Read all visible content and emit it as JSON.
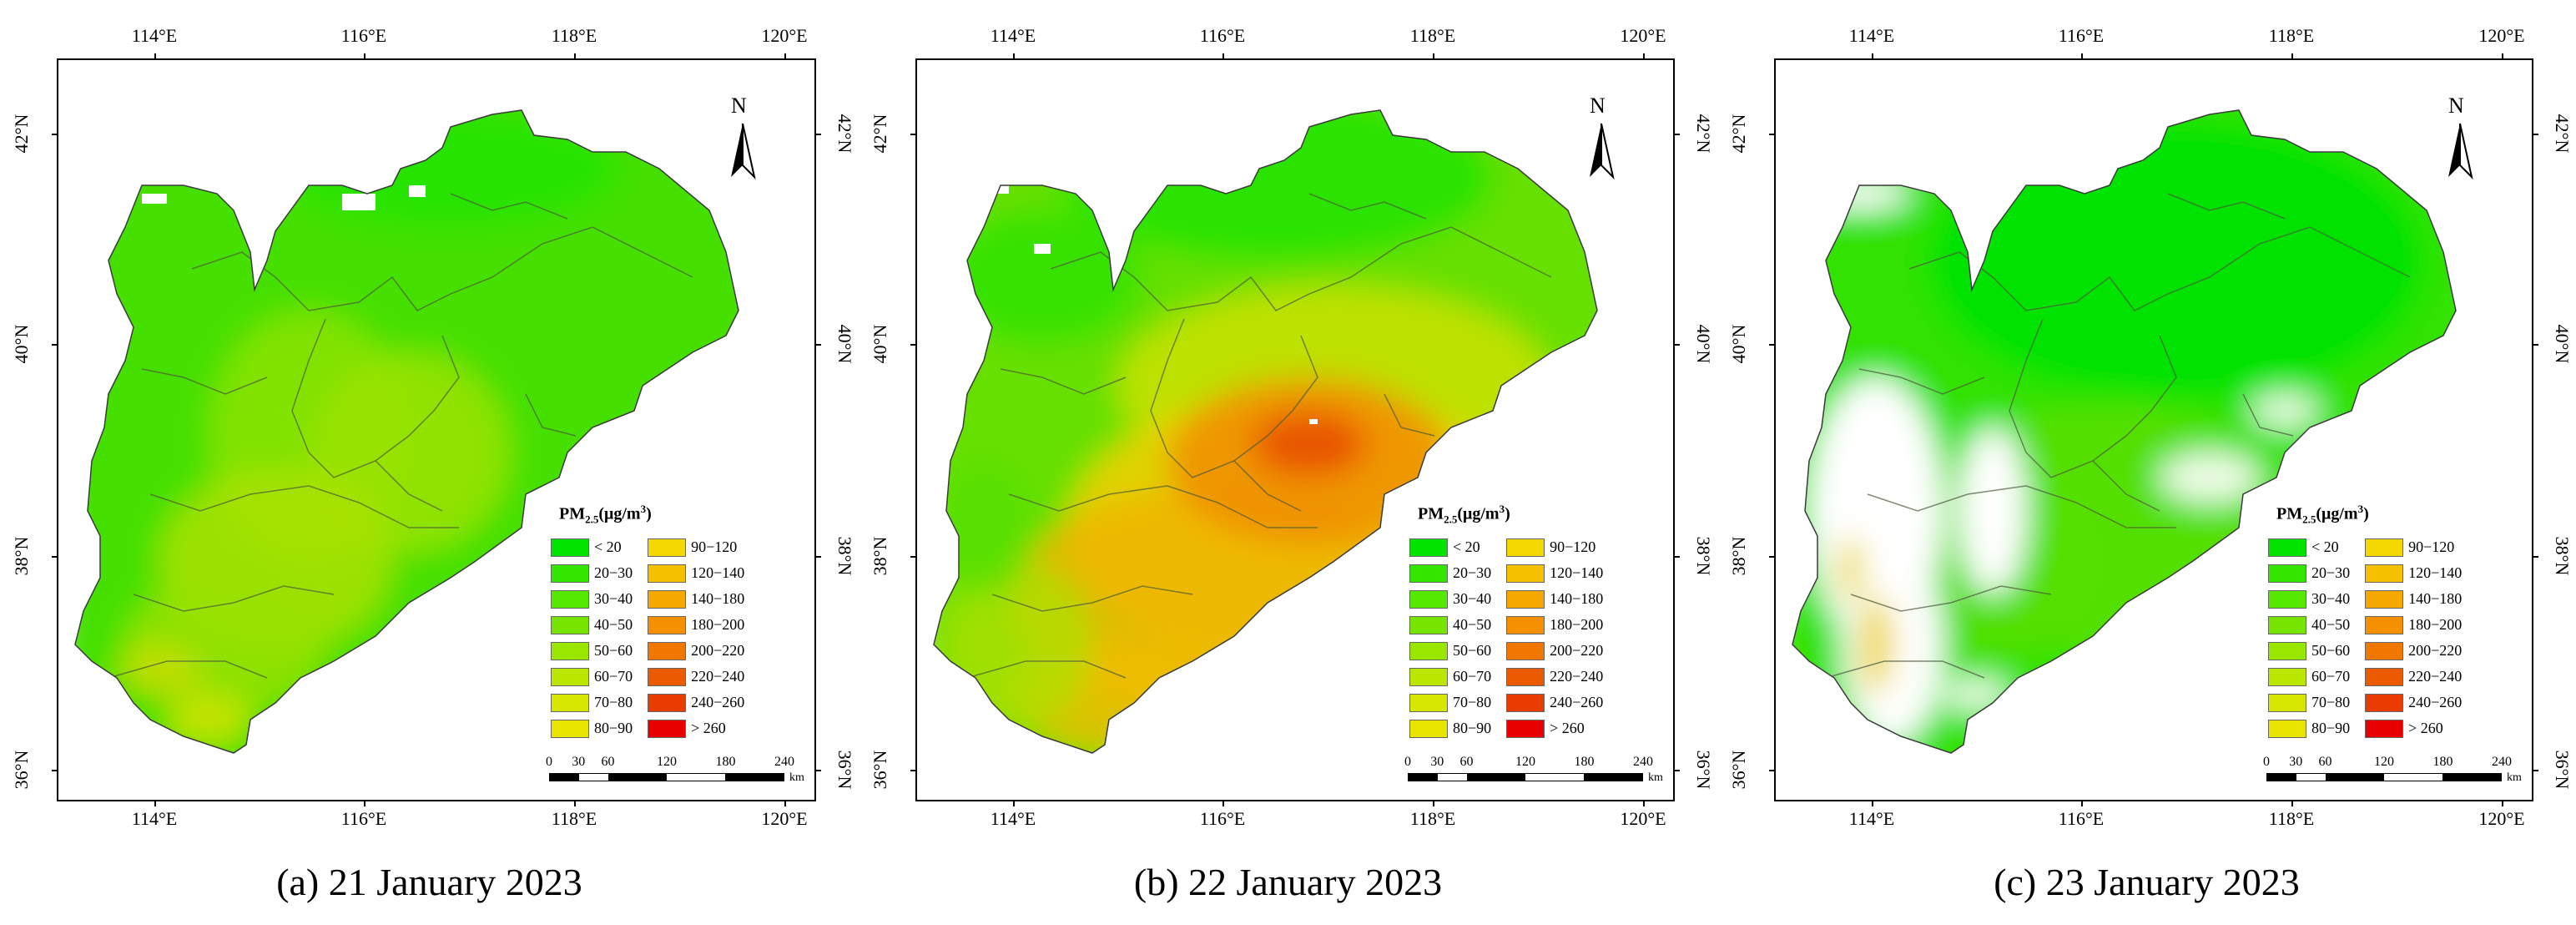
{
  "figure": {
    "legend": {
      "title_main": "PM",
      "title_sub": "2.5",
      "title_unit_pre": "(μg/m",
      "title_unit_sup": "3",
      "title_unit_post": ")",
      "left_items": [
        {
          "label": "< 20",
          "color": "#00e400"
        },
        {
          "label": "20−30",
          "color": "#33e600"
        },
        {
          "label": "30−40",
          "color": "#55e800"
        },
        {
          "label": "40−50",
          "color": "#77e400"
        },
        {
          "label": "50−60",
          "color": "#99e600"
        },
        {
          "label": "60−70",
          "color": "#bbe600"
        },
        {
          "label": "70−80",
          "color": "#d6e600"
        },
        {
          "label": "80−90",
          "color": "#e8e400"
        }
      ],
      "right_items": [
        {
          "label": "90−120",
          "color": "#f5d800"
        },
        {
          "label": "120−140",
          "color": "#f5c000"
        },
        {
          "label": "140−180",
          "color": "#f5a800"
        },
        {
          "label": "180−200",
          "color": "#f59000"
        },
        {
          "label": "200−220",
          "color": "#f07800"
        },
        {
          "label": "220−240",
          "color": "#ec5a00"
        },
        {
          "label": "240−260",
          "color": "#e83c00"
        },
        {
          "label": "> 260",
          "color": "#e60000"
        }
      ]
    },
    "north_label": "N",
    "lon_ticks": [
      "114°E",
      "116°E",
      "118°E",
      "120°E"
    ],
    "lat_ticks": [
      "42°N",
      "40°N",
      "38°N",
      "36°N"
    ],
    "scale": {
      "labels": [
        "0",
        "30",
        "60",
        "120",
        "180",
        "240"
      ],
      "unit": "km"
    },
    "panels": [
      {
        "caption": "(a) 21 January 2023",
        "day": 21
      },
      {
        "caption": "(b) 22 January 2023",
        "day": 22
      },
      {
        "caption": "(c) 23 January 2023",
        "day": 23
      }
    ]
  }
}
